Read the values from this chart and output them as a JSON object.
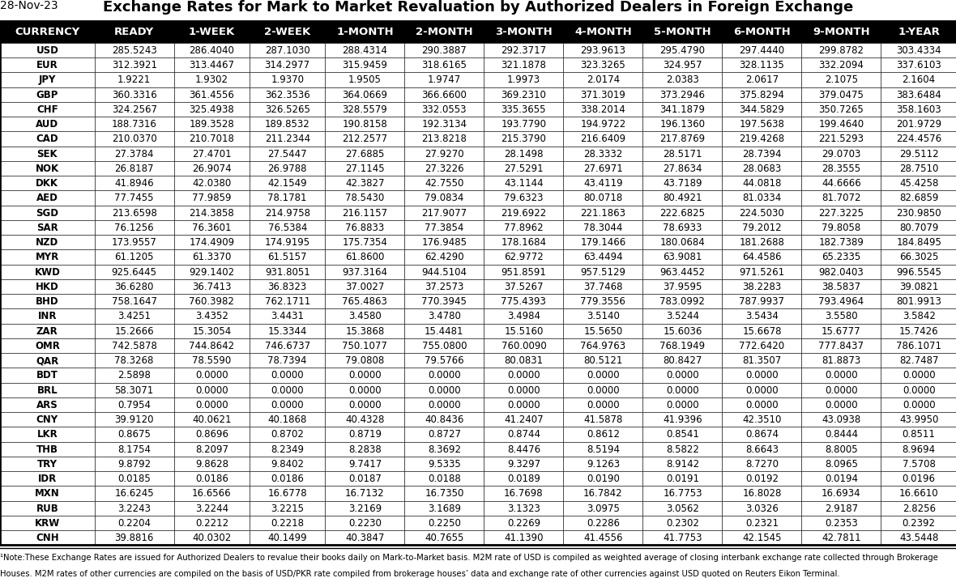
{
  "date": "28-Nov-23",
  "title": "Exchange Rates for Mark to Market Revaluation by Authorized Dealers in Foreign Exchange",
  "columns": [
    "CURRENCY",
    "READY",
    "1-WEEK",
    "2-WEEK",
    "1-MONTH",
    "2-MONTH",
    "3-MONTH",
    "4-MONTH",
    "5-MONTH",
    "6-MONTH",
    "9-MONTH",
    "1-YEAR"
  ],
  "rows": [
    [
      "USD",
      "285.5243",
      "286.4040",
      "287.1030",
      "288.4314",
      "290.3887",
      "292.3717",
      "293.9613",
      "295.4790",
      "297.4440",
      "299.8782",
      "303.4334"
    ],
    [
      "EUR",
      "312.3921",
      "313.4467",
      "314.2977",
      "315.9459",
      "318.6165",
      "321.1878",
      "323.3265",
      "324.957",
      "328.1135",
      "332.2094",
      "337.6103"
    ],
    [
      "JPY",
      "1.9221",
      "1.9302",
      "1.9370",
      "1.9505",
      "1.9747",
      "1.9973",
      "2.0174",
      "2.0383",
      "2.0617",
      "2.1075",
      "2.1604"
    ],
    [
      "GBP",
      "360.3316",
      "361.4556",
      "362.3536",
      "364.0669",
      "366.6600",
      "369.2310",
      "371.3019",
      "373.2946",
      "375.8294",
      "379.0475",
      "383.6484"
    ],
    [
      "CHF",
      "324.2567",
      "325.4938",
      "326.5265",
      "328.5579",
      "332.0553",
      "335.3655",
      "338.2014",
      "341.1879",
      "344.5829",
      "350.7265",
      "358.1603"
    ],
    [
      "AUD",
      "188.7316",
      "189.3528",
      "189.8532",
      "190.8158",
      "192.3134",
      "193.7790",
      "194.9722",
      "196.1360",
      "197.5638",
      "199.4640",
      "201.9729"
    ],
    [
      "CAD",
      "210.0370",
      "210.7018",
      "211.2344",
      "212.2577",
      "213.8218",
      "215.3790",
      "216.6409",
      "217.8769",
      "219.4268",
      "221.5293",
      "224.4576"
    ],
    [
      "SEK",
      "27.3784",
      "27.4701",
      "27.5447",
      "27.6885",
      "27.9270",
      "28.1498",
      "28.3332",
      "28.5171",
      "28.7394",
      "29.0703",
      "29.5112"
    ],
    [
      "NOK",
      "26.8187",
      "26.9074",
      "26.9788",
      "27.1145",
      "27.3226",
      "27.5291",
      "27.6971",
      "27.8634",
      "28.0683",
      "28.3555",
      "28.7510"
    ],
    [
      "DKK",
      "41.8946",
      "42.0380",
      "42.1549",
      "42.3827",
      "42.7550",
      "43.1144",
      "43.4119",
      "43.7189",
      "44.0818",
      "44.6666",
      "45.4258"
    ],
    [
      "AED",
      "77.7455",
      "77.9859",
      "78.1781",
      "78.5430",
      "79.0834",
      "79.6323",
      "80.0718",
      "80.4921",
      "81.0334",
      "81.7072",
      "82.6859"
    ],
    [
      "SGD",
      "213.6598",
      "214.3858",
      "214.9758",
      "216.1157",
      "217.9077",
      "219.6922",
      "221.1863",
      "222.6825",
      "224.5030",
      "227.3225",
      "230.9850"
    ],
    [
      "SAR",
      "76.1256",
      "76.3601",
      "76.5384",
      "76.8833",
      "77.3854",
      "77.8962",
      "78.3044",
      "78.6933",
      "79.2012",
      "79.8058",
      "80.7079"
    ],
    [
      "NZD",
      "173.9557",
      "174.4909",
      "174.9195",
      "175.7354",
      "176.9485",
      "178.1684",
      "179.1466",
      "180.0684",
      "181.2688",
      "182.7389",
      "184.8495"
    ],
    [
      "MYR",
      "61.1205",
      "61.3370",
      "61.5157",
      "61.8600",
      "62.4290",
      "62.9772",
      "63.4494",
      "63.9081",
      "64.4586",
      "65.2335",
      "66.3025"
    ],
    [
      "KWD",
      "925.6445",
      "929.1402",
      "931.8051",
      "937.3164",
      "944.5104",
      "951.8591",
      "957.5129",
      "963.4452",
      "971.5261",
      "982.0403",
      "996.5545"
    ],
    [
      "HKD",
      "36.6280",
      "36.7413",
      "36.8323",
      "37.0027",
      "37.2573",
      "37.5267",
      "37.7468",
      "37.9595",
      "38.2283",
      "38.5837",
      "39.0821"
    ],
    [
      "BHD",
      "758.1647",
      "760.3982",
      "762.1711",
      "765.4863",
      "770.3945",
      "775.4393",
      "779.3556",
      "783.0992",
      "787.9937",
      "793.4964",
      "801.9913"
    ],
    [
      "INR",
      "3.4251",
      "3.4352",
      "3.4431",
      "3.4580",
      "3.4780",
      "3.4984",
      "3.5140",
      "3.5244",
      "3.5434",
      "3.5580",
      "3.5842"
    ],
    [
      "ZAR",
      "15.2666",
      "15.3054",
      "15.3344",
      "15.3868",
      "15.4481",
      "15.5160",
      "15.5650",
      "15.6036",
      "15.6678",
      "15.6777",
      "15.7426"
    ],
    [
      "OMR",
      "742.5878",
      "744.8642",
      "746.6737",
      "750.1077",
      "755.0800",
      "760.0090",
      "764.9763",
      "768.1949",
      "772.6420",
      "777.8437",
      "786.1071"
    ],
    [
      "QAR",
      "78.3268",
      "78.5590",
      "78.7394",
      "79.0808",
      "79.5766",
      "80.0831",
      "80.5121",
      "80.8427",
      "81.3507",
      "81.8873",
      "82.7487"
    ],
    [
      "BDT",
      "2.5898",
      "0.0000",
      "0.0000",
      "0.0000",
      "0.0000",
      "0.0000",
      "0.0000",
      "0.0000",
      "0.0000",
      "0.0000",
      "0.0000"
    ],
    [
      "BRL",
      "58.3071",
      "0.0000",
      "0.0000",
      "0.0000",
      "0.0000",
      "0.0000",
      "0.0000",
      "0.0000",
      "0.0000",
      "0.0000",
      "0.0000"
    ],
    [
      "ARS",
      "0.7954",
      "0.0000",
      "0.0000",
      "0.0000",
      "0.0000",
      "0.0000",
      "0.0000",
      "0.0000",
      "0.0000",
      "0.0000",
      "0.0000"
    ],
    [
      "CNY",
      "39.9120",
      "40.0621",
      "40.1868",
      "40.4328",
      "40.8436",
      "41.2407",
      "41.5878",
      "41.9396",
      "42.3510",
      "43.0938",
      "43.9950"
    ],
    [
      "LKR",
      "0.8675",
      "0.8696",
      "0.8702",
      "0.8719",
      "0.8727",
      "0.8744",
      "0.8612",
      "0.8541",
      "0.8674",
      "0.8444",
      "0.8511"
    ],
    [
      "THB",
      "8.1754",
      "8.2097",
      "8.2349",
      "8.2838",
      "8.3692",
      "8.4476",
      "8.5194",
      "8.5822",
      "8.6643",
      "8.8005",
      "8.9694"
    ],
    [
      "TRY",
      "9.8792",
      "9.8628",
      "9.8402",
      "9.7417",
      "9.5335",
      "9.3297",
      "9.1263",
      "8.9142",
      "8.7270",
      "8.0965",
      "7.5708"
    ],
    [
      "IDR",
      "0.0185",
      "0.0186",
      "0.0186",
      "0.0187",
      "0.0188",
      "0.0189",
      "0.0190",
      "0.0191",
      "0.0192",
      "0.0194",
      "0.0196"
    ],
    [
      "MXN",
      "16.6245",
      "16.6566",
      "16.6778",
      "16.7132",
      "16.7350",
      "16.7698",
      "16.7842",
      "16.7753",
      "16.8028",
      "16.6934",
      "16.6610"
    ],
    [
      "RUB",
      "3.2243",
      "3.2244",
      "3.2215",
      "3.2169",
      "3.1689",
      "3.1323",
      "3.0975",
      "3.0562",
      "3.0326",
      "2.9187",
      "2.8256"
    ],
    [
      "KRW",
      "0.2204",
      "0.2212",
      "0.2218",
      "0.2230",
      "0.2250",
      "0.2269",
      "0.2286",
      "0.2302",
      "0.2321",
      "0.2353",
      "0.2392"
    ],
    [
      "CNH",
      "39.8816",
      "40.0302",
      "40.1499",
      "40.3847",
      "40.7655",
      "41.1390",
      "41.4556",
      "41.7753",
      "42.1545",
      "42.7811",
      "43.5448"
    ]
  ],
  "footnote_line1": "¹Note:These Exchange Rates are issued for Authorized Dealers to revalue their books daily on Mark-to-Market basis. M2M rate of USD is compiled as weighted average of closing interbank exchange rate collected through Brokerage",
  "footnote_line2": "Houses. M2M rates of other currencies are compiled on the basis of USD/PKR rate compiled from brokerage houses’ data and exchange rate of other currencies against USD quoted on Reuters Eikon Terminal.",
  "header_bg": "#000000",
  "header_fg": "#ffffff",
  "row_bg": "#ffffff",
  "border_color": "#000000",
  "title_fontsize": 13,
  "date_fontsize": 10,
  "header_fontsize": 9.5,
  "cell_fontsize": 8.5,
  "footnote_fontsize": 7.2,
  "col_widths_rel": [
    1.25,
    1.05,
    1.0,
    1.0,
    1.05,
    1.05,
    1.05,
    1.05,
    1.05,
    1.05,
    1.05,
    1.0
  ]
}
